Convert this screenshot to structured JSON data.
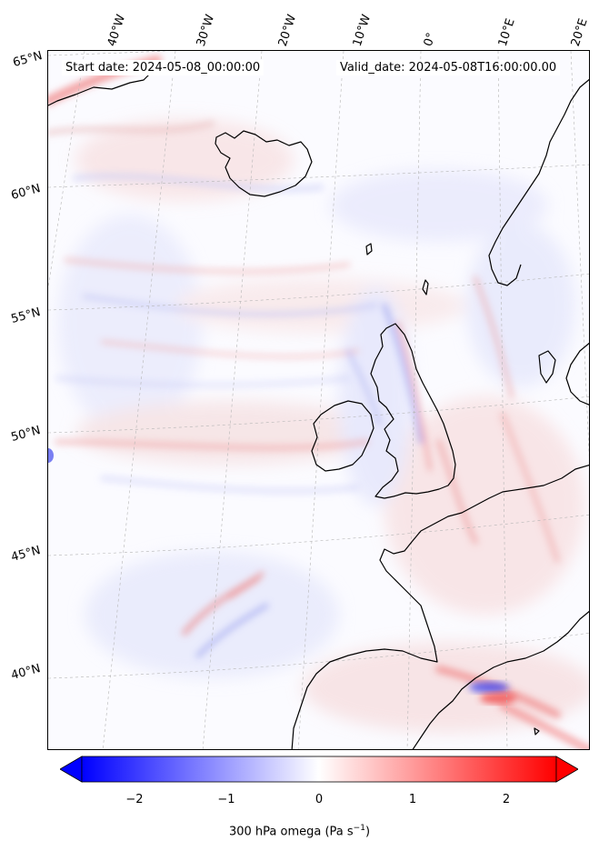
{
  "header": {
    "start_date": "Start date: 2024-05-08_00:00:00",
    "valid_date": "Valid_date: 2024-05-08T16:00:00.00"
  },
  "longitude_labels": [
    "40°W",
    "30°W",
    "20°W",
    "10°W",
    "0°",
    "10°E",
    "20°E"
  ],
  "latitude_labels": [
    "65°N",
    "60°N",
    "55°N",
    "50°N",
    "45°N",
    "40°N"
  ],
  "colorbar": {
    "ticks": [
      "−2",
      "−1",
      "0",
      "1",
      "2"
    ],
    "min": -2.6,
    "max": 2.6,
    "label_text": "300 hPa omega (Pa s",
    "label_exp": "−1",
    "label_close": ")",
    "colors": {
      "negative": "#0000ff",
      "zero": "#ffffff",
      "positive": "#ff0000"
    },
    "extend": "both"
  },
  "map": {
    "field": "300 hPa omega",
    "colormap": "bwr",
    "projection": "conic",
    "gridlines": true,
    "coastline_color": "#000000"
  }
}
